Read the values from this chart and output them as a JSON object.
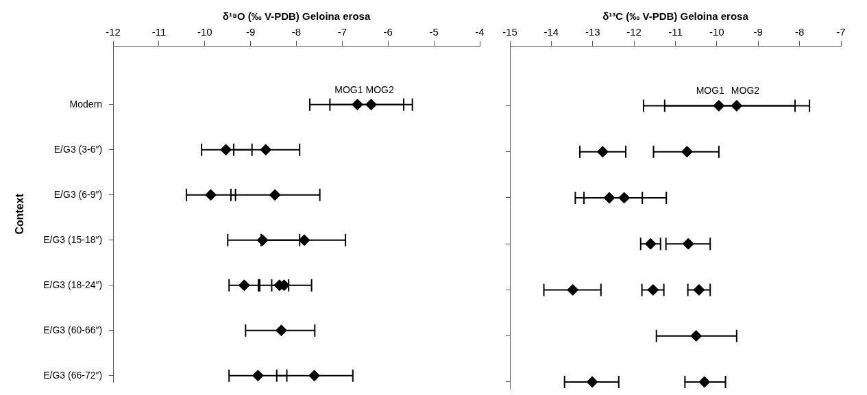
{
  "chart_data": [
    {
      "type": "scatter",
      "orientation": "horizontal",
      "xlabel": "δ¹⁸O (‰ V-PDB) Geloina erosa",
      "ylabel": "Context",
      "categories": [
        "Modern",
        "E/G3 (3-6″)",
        "E/G3 (6-9″)",
        "E/G3 (15-18″)",
        "E/G3 (18-24″)",
        "E/G3 (60-66″)",
        "E/G3 (66-72″)"
      ],
      "xlim": [
        -12,
        -4
      ],
      "xticks": [
        -12,
        -11,
        -10,
        -9,
        -8,
        -7,
        -6,
        -5,
        -4
      ],
      "marker": "diamond",
      "series": [
        {
          "color": "#000000",
          "values": [
            -6.67,
            -9.54,
            -9.87,
            -8.74,
            -9.14,
            -8.33,
            -8.84
          ],
          "errors": [
            [
              -7.71,
              -5.66
            ],
            [
              -10.07,
              -8.97
            ],
            [
              -10.4,
              -9.33
            ],
            [
              -9.5,
              -7.93
            ],
            [
              -9.47,
              -8.8
            ],
            [
              -9.11,
              -7.6
            ],
            [
              -9.47,
              -8.21
            ]
          ]
        },
        {
          "color": "#000000",
          "values": [
            -6.37,
            -8.67,
            -8.47,
            -7.83,
            -8.37,
            null,
            -7.61
          ],
          "errors": [
            [
              -7.27,
              -5.47
            ],
            [
              -9.37,
              -7.93
            ],
            [
              -9.43,
              -7.49
            ],
            [
              -8.77,
              -6.93
            ],
            [
              -8.54,
              -8.17
            ],
            null,
            [
              -8.43,
              -6.77
            ]
          ]
        },
        {
          "color": "#000000",
          "values": [
            null,
            null,
            null,
            null,
            -8.27,
            null,
            null
          ],
          "errors": [
            null,
            null,
            null,
            null,
            [
              -8.83,
              -7.67
            ],
            null,
            null
          ]
        }
      ],
      "annotations": [
        {
          "text": "MOG1",
          "x": -6.67,
          "y": "Modern"
        },
        {
          "text": "MOG2",
          "x": -6.37,
          "y": "Modern"
        }
      ]
    },
    {
      "type": "scatter",
      "orientation": "horizontal",
      "xlabel": "δ¹³C (‰ V-PDB) Geloina erosa",
      "categories": [
        "Modern",
        "E/G3 (3-6″)",
        "E/G3 (6-9″)",
        "E/G3 (15-18″)",
        "E/G3 (18-24″)",
        "E/G3 (60-66″)",
        "E/G3 (66-72″)"
      ],
      "xlim": [
        -15,
        -7
      ],
      "xticks": [
        -15,
        -14,
        -13,
        -12,
        -11,
        -10,
        -9,
        -8,
        -7
      ],
      "marker": "diamond",
      "tick_labels": "x",
      "series": [
        {
          "color": "#000000",
          "values": [
            -9.95,
            -12.76,
            -12.6,
            -11.6,
            -13.48,
            -10.5,
            -13.01
          ],
          "errors": [
            [
              -11.77,
              -8.11
            ],
            [
              -13.31,
              -12.2
            ],
            [
              -13.42,
              -11.8
            ],
            [
              -11.84,
              -11.36
            ],
            [
              -14.18,
              -12.8
            ],
            [
              -11.46,
              -9.52
            ],
            [
              -13.68,
              -12.37
            ]
          ]
        },
        {
          "color": "#000000",
          "values": [
            -9.52,
            -10.72,
            -12.24,
            -10.69,
            -11.54,
            null,
            -10.3
          ],
          "errors": [
            [
              -11.26,
              -7.76
            ],
            [
              -11.53,
              -9.95
            ],
            [
              -13.21,
              -11.22
            ],
            [
              -11.23,
              -10.16
            ],
            [
              -11.81,
              -11.28
            ],
            null,
            [
              -10.77,
              -9.79
            ]
          ]
        },
        {
          "color": "#000000",
          "values": [
            null,
            null,
            null,
            null,
            -10.43,
            null,
            null
          ],
          "errors": [
            null,
            null,
            null,
            null,
            [
              -10.7,
              -10.16
            ],
            null,
            null
          ]
        }
      ],
      "annotations": [
        {
          "text": "MOG1",
          "x": -9.95,
          "y": "Modern"
        },
        {
          "text": "MOG2",
          "x": -9.52,
          "y": "Modern"
        }
      ]
    }
  ]
}
